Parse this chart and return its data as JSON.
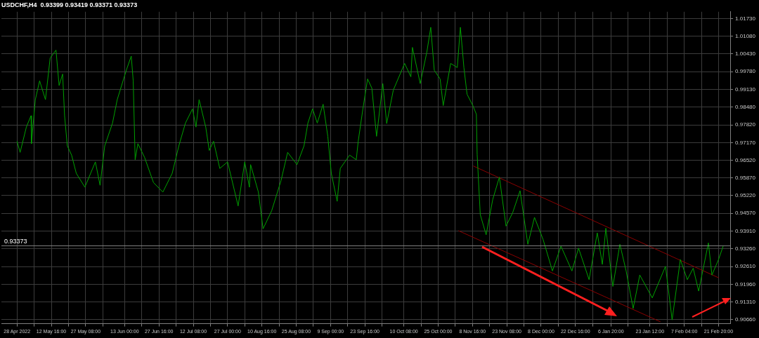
{
  "chart_data": {
    "type": "line",
    "title": "USDCHF,H4  0.93399 0.93419 0.93371 0.93373",
    "xlim": [
      "2022-04-21T08:00",
      "2023-02-26T20:00"
    ],
    "xticks": [
      {
        "value": "2022-04-28T00:00",
        "label": "28 Apr 2022"
      },
      {
        "value": "2022-05-05T08:00",
        "label": null
      },
      {
        "value": "2022-05-12T16:00",
        "label": "12 May 16:00"
      },
      {
        "value": "2022-05-20T00:00",
        "label": null
      },
      {
        "value": "2022-05-27T08:00",
        "label": "27 May 08:00"
      },
      {
        "value": "2022-06-03T16:00",
        "label": null
      },
      {
        "value": "2022-06-13T00:00",
        "label": "13 Jun 00:00"
      },
      {
        "value": "2022-06-20T08:00",
        "label": null
      },
      {
        "value": "2022-06-27T16:00",
        "label": "27 Jun 16:00"
      },
      {
        "value": "2022-07-05T00:00",
        "label": null
      },
      {
        "value": "2022-07-12T08:00",
        "label": "12 Jul 08:00"
      },
      {
        "value": "2022-07-19T16:00",
        "label": null
      },
      {
        "value": "2022-07-27T00:00",
        "label": "27 Jul 00:00"
      },
      {
        "value": "2022-08-03T08:00",
        "label": null
      },
      {
        "value": "2022-08-10T16:00",
        "label": "10 Aug 16:00"
      },
      {
        "value": "2022-08-18T00:00",
        "label": null
      },
      {
        "value": "2022-08-25T08:00",
        "label": "25 Aug 08:00"
      },
      {
        "value": "2022-09-01T16:00",
        "label": null
      },
      {
        "value": "2022-09-09T00:00",
        "label": "9 Sep 00:00"
      },
      {
        "value": "2022-09-16T08:00",
        "label": null
      },
      {
        "value": "2022-09-23T16:00",
        "label": "23 Sep 16:00"
      },
      {
        "value": "2022-10-01T00:00",
        "label": null
      },
      {
        "value": "2022-10-10T08:00",
        "label": "10 Oct 08:00"
      },
      {
        "value": "2022-10-17T16:00",
        "label": null
      },
      {
        "value": "2022-10-25T00:00",
        "label": "25 Oct 00:00"
      },
      {
        "value": "2022-11-01T08:00",
        "label": null
      },
      {
        "value": "2022-11-08T16:00",
        "label": "8 Nov 16:00"
      },
      {
        "value": "2022-11-16T00:00",
        "label": null
      },
      {
        "value": "2022-11-23T08:00",
        "label": "23 Nov 08:00"
      },
      {
        "value": "2022-11-30T16:00",
        "label": null
      },
      {
        "value": "2022-12-08T00:00",
        "label": "8 Dec 00:00"
      },
      {
        "value": "2022-12-15T08:00",
        "label": null
      },
      {
        "value": "2022-12-22T16:00",
        "label": "22 Dec 16:00"
      },
      {
        "value": "2022-12-30T00:00",
        "label": null
      },
      {
        "value": "2023-01-06T20:00",
        "label": "6 Jan 20:00"
      },
      {
        "value": "2023-01-14T04:00",
        "label": null
      },
      {
        "value": "2023-01-23T12:00",
        "label": "23 Jan 12:00"
      },
      {
        "value": "2023-01-30T20:00",
        "label": null
      },
      {
        "value": "2023-02-07T04:00",
        "label": "7 Feb 04:00"
      },
      {
        "value": "2023-02-14T12:00",
        "label": null
      },
      {
        "value": "2023-02-21T20:00",
        "label": "21 Feb 20:00"
      }
    ],
    "ylim": [
      0.9051,
      1.0198
    ],
    "yticks": [
      {
        "value": 0.9066,
        "label": "0.90660"
      },
      {
        "value": 0.9131,
        "label": "0.91310"
      },
      {
        "value": 0.9196,
        "label": "0.91960"
      },
      {
        "value": 0.9261,
        "label": "0.92610"
      },
      {
        "value": 0.9326,
        "label": "0.93260"
      },
      {
        "value": 0.9391,
        "label": "0.93910"
      },
      {
        "value": 0.9457,
        "label": "0.94570"
      },
      {
        "value": 0.9522,
        "label": "0.95220"
      },
      {
        "value": 0.9587,
        "label": "0.95870"
      },
      {
        "value": 0.9652,
        "label": "0.96520"
      },
      {
        "value": 0.9717,
        "label": "0.97170"
      },
      {
        "value": 0.9782,
        "label": "0.97820"
      },
      {
        "value": 0.9848,
        "label": "0.98480"
      },
      {
        "value": 0.9913,
        "label": "0.99130"
      },
      {
        "value": 0.9978,
        "label": "0.99780"
      },
      {
        "value": 1.0043,
        "label": "1.00430"
      },
      {
        "value": 1.0108,
        "label": "1.01080"
      },
      {
        "value": 1.0173,
        "label": "1.01730"
      }
    ],
    "grid": true,
    "legend": false,
    "marker": "none",
    "series": [
      {
        "color": "#00a000",
        "x": [
          "2022-04-28T00:00",
          "2022-04-29T08:00",
          "2022-05-02T00:00",
          "2022-05-04T00:00",
          "2022-05-04T04:00",
          "2022-05-05T20:00",
          "2022-05-07T16:00",
          "2022-05-10T04:00",
          "2022-05-12T04:00",
          "2022-05-14T16:00",
          "2022-05-16T00:00",
          "2022-05-17T12:00",
          "2022-05-18T08:00",
          "2022-05-19T12:00",
          "2022-05-21T08:00",
          "2022-05-23T08:00",
          "2022-05-27T00:00",
          "2022-05-31T12:00",
          "2022-06-02T12:00",
          "2022-06-04T12:00",
          "2022-06-07T20:00",
          "2022-06-09T20:00",
          "2022-06-13T20:00",
          "2022-06-15T20:00",
          "2022-06-16T16:00",
          "2022-06-17T12:00",
          "2022-06-18T16:00",
          "2022-06-21T12:00",
          "2022-06-25T08:00",
          "2022-06-29T08:00",
          "2022-07-03T08:00",
          "2022-07-06T04:00",
          "2022-07-09T00:00",
          "2022-07-12T00:00",
          "2022-07-13T12:00",
          "2022-07-14T20:00",
          "2022-07-17T16:00",
          "2022-07-19T04:00",
          "2022-07-21T00:00",
          "2022-07-23T16:00",
          "2022-07-27T00:00",
          "2022-07-31T12:00",
          "2022-08-03T08:00",
          "2022-08-05T08:00",
          "2022-08-05T20:00",
          "2022-08-09T04:00",
          "2022-08-11T04:00",
          "2022-08-14T20:00",
          "2022-08-18T20:00",
          "2022-08-21T16:00",
          "2022-08-25T16:00",
          "2022-08-28T16:00",
          "2022-08-30T08:00",
          "2022-09-01T08:00",
          "2022-09-03T08:00",
          "2022-09-05T20:00",
          "2022-09-07T20:00",
          "2022-09-09T08:00",
          "2022-09-11T20:00",
          "2022-09-13T04:00",
          "2022-09-17T04:00",
          "2022-09-20T00:00",
          "2022-09-20T20:00",
          "2022-09-22T20:00",
          "2022-09-24T20:00",
          "2022-09-26T16:00",
          "2022-09-28T16:00",
          "2022-09-29T08:00",
          "2022-10-01T08:00",
          "2022-10-03T00:00",
          "2022-10-05T20:00",
          "2022-10-10T16:00",
          "2022-10-13T08:00",
          "2022-10-14T00:00",
          "2022-10-17T08:00",
          "2022-10-20T04:00",
          "2022-10-21T20:00",
          "2022-10-23T08:00",
          "2022-10-25T20:00",
          "2022-10-27T04:00",
          "2022-10-30T08:00",
          "2022-11-02T04:00",
          "2022-11-03T12:00",
          "2022-11-05T00:00",
          "2022-11-06T08:00",
          "2022-11-08T20:00",
          "2022-11-10T08:00",
          "2022-11-10T16:00",
          "2022-11-12T00:00",
          "2022-11-14T12:00",
          "2022-11-17T08:00",
          "2022-11-20T04:00",
          "2022-11-23T00:00",
          "2022-11-25T20:00",
          "2022-11-29T00:00",
          "2022-12-02T08:00",
          "2022-12-05T04:00",
          "2022-12-08T20:00",
          "2022-12-12T20:00",
          "2022-12-16T12:00",
          "2022-12-21T04:00",
          "2022-12-24T00:00",
          "2022-12-28T12:00",
          "2023-01-01T00:00",
          "2023-01-03T04:00",
          "2023-01-04T16:00",
          "2023-01-07T16:00",
          "2023-01-10T16:00",
          "2023-01-13T08:00",
          "2023-01-16T08:00",
          "2023-01-19T04:00",
          "2023-01-24T12:00",
          "2023-01-30T04:00",
          "2023-02-02T00:00",
          "2023-02-05T12:00",
          "2023-02-08T12:00",
          "2023-02-11T00:00",
          "2023-02-13T08:00",
          "2023-02-17T12:00",
          "2023-02-19T00:00",
          "2023-02-21T20:00",
          "2023-02-23T20:00"
        ],
        "values": [
          0.9722,
          0.9681,
          0.9774,
          0.9816,
          0.9713,
          0.9875,
          0.9944,
          0.9875,
          1.0028,
          1.0057,
          0.9927,
          0.9969,
          0.9816,
          0.9705,
          0.9671,
          0.9604,
          0.9553,
          0.9646,
          0.956,
          0.9705,
          0.9789,
          0.9875,
          0.9986,
          1.0035,
          0.9944,
          0.9654,
          0.9713,
          0.9663,
          0.957,
          0.9535,
          0.9604,
          0.9705,
          0.9789,
          0.9841,
          0.9774,
          0.9875,
          0.9774,
          0.9688,
          0.9722,
          0.9622,
          0.9646,
          0.9484,
          0.9646,
          0.9553,
          0.9636,
          0.9535,
          0.94,
          0.9466,
          0.9577,
          0.9681,
          0.9636,
          0.9705,
          0.9789,
          0.9841,
          0.9789,
          0.9858,
          0.974,
          0.9604,
          0.9501,
          0.9622,
          0.9671,
          0.9654,
          0.9722,
          0.9841,
          0.9951,
          0.9917,
          0.974,
          0.9787,
          0.9934,
          0.9787,
          0.991,
          1.0008,
          0.9959,
          1.0067,
          0.9934,
          1.005,
          1.0141,
          0.9983,
          0.9951,
          0.9853,
          1.0008,
          0.9993,
          1.0141,
          0.9993,
          0.9895,
          0.9853,
          0.9821,
          0.9673,
          0.9452,
          0.9378,
          0.9508,
          0.959,
          0.941,
          0.9459,
          0.954,
          0.9343,
          0.9442,
          0.9361,
          0.9245,
          0.9336,
          0.9245,
          0.9329,
          0.9213,
          0.9385,
          0.9269,
          0.9402,
          0.9188,
          0.9343,
          0.9245,
          0.9107,
          0.923,
          0.9146,
          0.9262,
          0.9065,
          0.9287,
          0.9213,
          0.9255,
          0.9171,
          0.9348,
          0.923,
          0.9287,
          0.9337
        ]
      },
      {
        "color": "#8b0000",
        "x": [
          "2022-11-09T00:00",
          "2023-02-21T20:00"
        ],
        "values": [
          0.9631,
          0.922
        ]
      },
      {
        "color": "#8b0000",
        "x": [
          "2022-11-02T16:00",
          "2023-01-28T00:00"
        ],
        "values": [
          0.9393,
          0.9058
        ]
      }
    ],
    "ref_lines": [
      {
        "axis": "y",
        "value": 0.93373,
        "label": "0.93373",
        "color": "#808080"
      }
    ]
  }
}
